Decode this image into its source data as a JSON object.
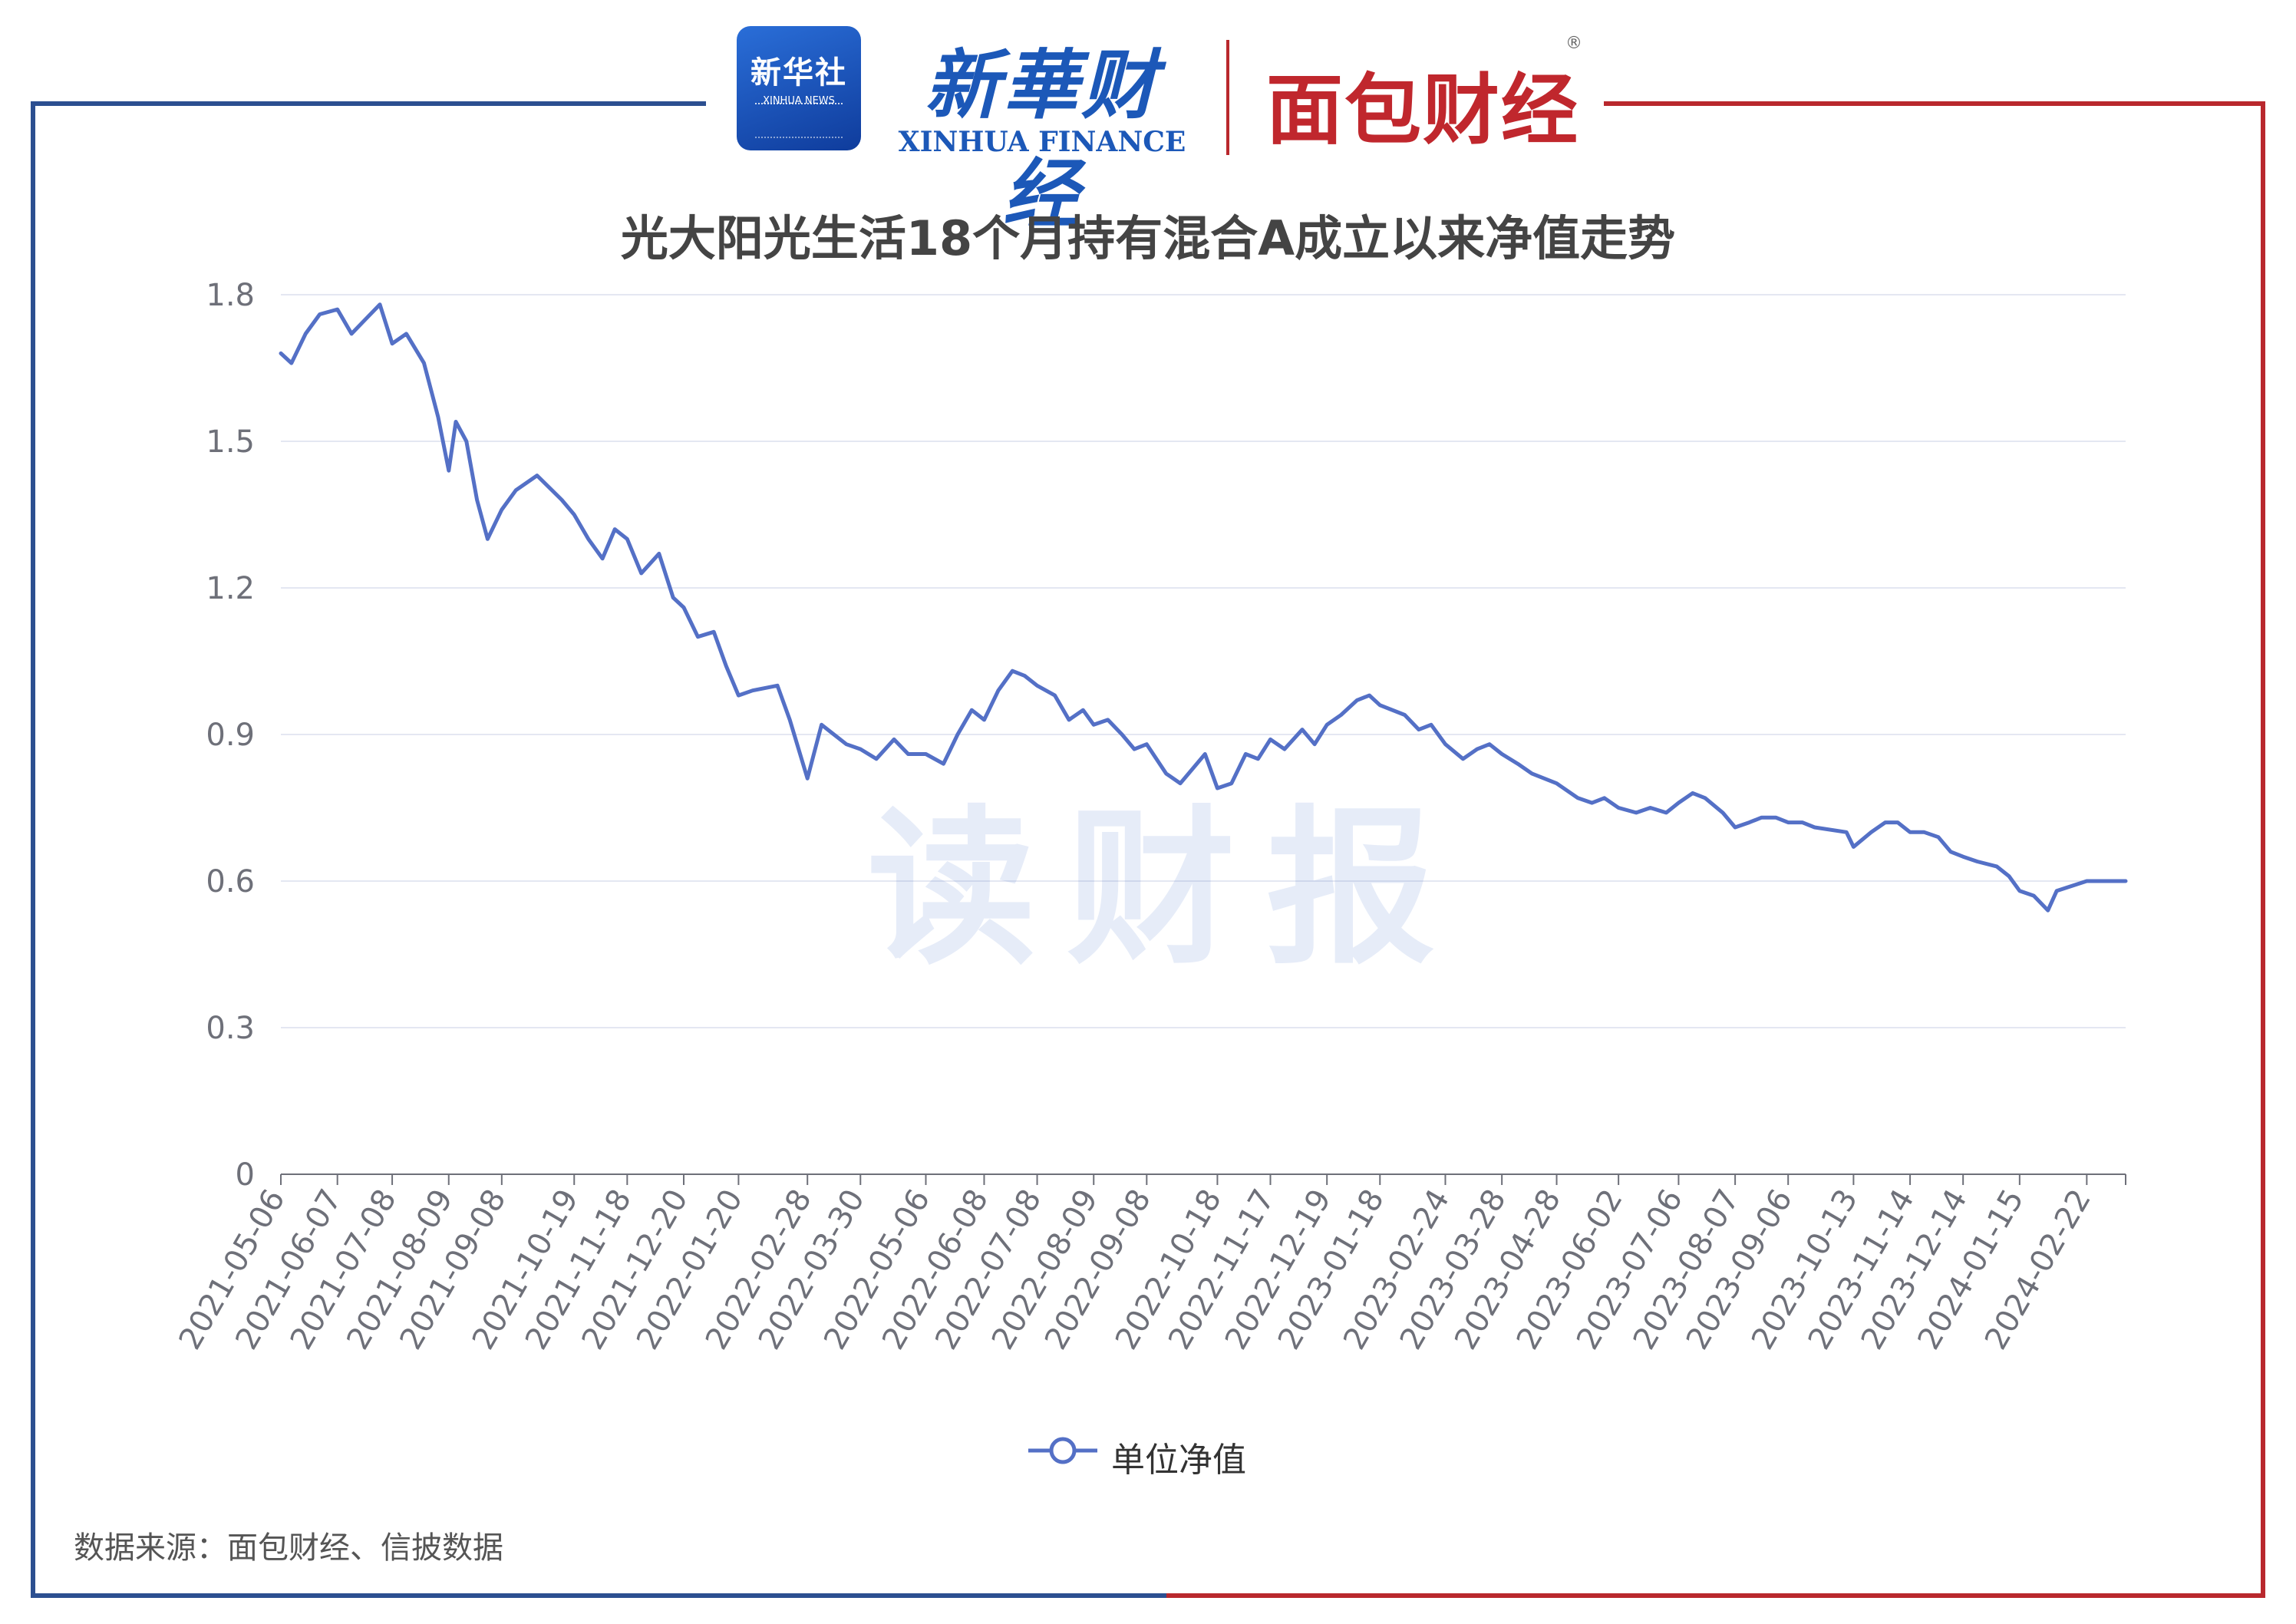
{
  "header": {
    "xinhua_news_cn": "新华社",
    "xinhua_news_en": "XINHUA NEWS",
    "xinhua_finance_cn": "新華财经",
    "xinhua_finance_en": "XINHUA FINANCE",
    "mianbao_logo": "面包财经",
    "registered_mark": "®"
  },
  "watermark": "读财报",
  "source_note": "数据来源：面包财经、信披数据",
  "colors": {
    "series": "#5470c6",
    "frame_left": "#2c4f90",
    "frame_right": "#b9282d"
  },
  "chart_data": {
    "type": "line",
    "title": "光大阳光生活18个月持有混合A成立以来净值走势",
    "xlabel": "",
    "ylabel": "",
    "ylim": [
      0,
      1.8
    ],
    "yticks": [
      "0",
      "0.3",
      "0.6",
      "0.9",
      "1.2",
      "1.5",
      "1.8"
    ],
    "grid": true,
    "legend_position": "bottom-center",
    "x_tick_labels": [
      "2021-05-06",
      "2021-06-07",
      "2021-07-08",
      "2021-08-09",
      "2021-09-08",
      "2021-10-19",
      "2021-11-18",
      "2021-12-20",
      "2022-01-20",
      "2022-02-28",
      "2022-03-30",
      "2022-05-06",
      "2022-06-08",
      "2022-07-08",
      "2022-08-09",
      "2022-09-08",
      "2022-10-18",
      "2022-11-17",
      "2022-12-19",
      "2023-01-18",
      "2023-02-24",
      "2023-03-28",
      "2023-04-28",
      "2023-06-02",
      "2023-07-06",
      "2023-08-07",
      "2023-09-06",
      "2023-10-13",
      "2023-11-14",
      "2023-12-14",
      "2024-01-15",
      "2024-02-22"
    ],
    "x": [
      "2021-05-06",
      "2021-05-12",
      "2021-05-20",
      "2021-05-28",
      "2021-06-07",
      "2021-06-15",
      "2021-06-23",
      "2021-07-01",
      "2021-07-08",
      "2021-07-16",
      "2021-07-26",
      "2021-08-03",
      "2021-08-09",
      "2021-08-13",
      "2021-08-19",
      "2021-08-25",
      "2021-08-31",
      "2021-09-08",
      "2021-09-16",
      "2021-09-28",
      "2021-10-12",
      "2021-10-19",
      "2021-10-27",
      "2021-11-04",
      "2021-11-11",
      "2021-11-18",
      "2021-11-26",
      "2021-12-06",
      "2021-12-14",
      "2021-12-20",
      "2021-12-28",
      "2022-01-06",
      "2022-01-13",
      "2022-01-20",
      "2022-01-28",
      "2022-02-11",
      "2022-02-18",
      "2022-02-28",
      "2022-03-08",
      "2022-03-15",
      "2022-03-22",
      "2022-03-30",
      "2022-04-08",
      "2022-04-18",
      "2022-04-26",
      "2022-05-06",
      "2022-05-16",
      "2022-05-24",
      "2022-06-01",
      "2022-06-08",
      "2022-06-16",
      "2022-06-24",
      "2022-07-01",
      "2022-07-08",
      "2022-07-18",
      "2022-07-26",
      "2022-08-03",
      "2022-08-09",
      "2022-08-17",
      "2022-08-25",
      "2022-09-01",
      "2022-09-08",
      "2022-09-19",
      "2022-09-27",
      "2022-10-11",
      "2022-10-18",
      "2022-10-26",
      "2022-11-03",
      "2022-11-10",
      "2022-11-17",
      "2022-11-25",
      "2022-12-05",
      "2022-12-12",
      "2022-12-19",
      "2022-12-27",
      "2023-01-05",
      "2023-01-12",
      "2023-01-18",
      "2023-02-01",
      "2023-02-09",
      "2023-02-16",
      "2023-02-24",
      "2023-03-06",
      "2023-03-14",
      "2023-03-21",
      "2023-03-28",
      "2023-04-06",
      "2023-04-14",
      "2023-04-21",
      "2023-04-28",
      "2023-05-10",
      "2023-05-18",
      "2023-05-25",
      "2023-06-02",
      "2023-06-12",
      "2023-06-20",
      "2023-06-29",
      "2023-07-06",
      "2023-07-14",
      "2023-07-21",
      "2023-07-31",
      "2023-08-07",
      "2023-08-15",
      "2023-08-22",
      "2023-08-30",
      "2023-09-06",
      "2023-09-14",
      "2023-09-21",
      "2023-10-09",
      "2023-10-13",
      "2023-10-23",
      "2023-10-31",
      "2023-11-07",
      "2023-11-14",
      "2023-11-22",
      "2023-11-30",
      "2023-12-07",
      "2023-12-14",
      "2023-12-22",
      "2024-01-02",
      "2024-01-09",
      "2024-01-15",
      "2024-01-23",
      "2024-01-31",
      "2024-02-05",
      "2024-02-22",
      "2024-03-01",
      "2024-03-08",
      "2024-03-15"
    ],
    "series": [
      {
        "name": "单位净值",
        "values": [
          1.68,
          1.66,
          1.72,
          1.76,
          1.77,
          1.72,
          1.75,
          1.78,
          1.7,
          1.72,
          1.66,
          1.55,
          1.44,
          1.54,
          1.5,
          1.38,
          1.3,
          1.36,
          1.4,
          1.43,
          1.38,
          1.35,
          1.3,
          1.26,
          1.32,
          1.3,
          1.23,
          1.27,
          1.18,
          1.16,
          1.1,
          1.11,
          1.04,
          0.98,
          0.99,
          1.0,
          0.93,
          0.81,
          0.92,
          0.9,
          0.88,
          0.87,
          0.85,
          0.89,
          0.86,
          0.86,
          0.84,
          0.9,
          0.95,
          0.93,
          0.99,
          1.03,
          1.02,
          1.0,
          0.98,
          0.93,
          0.95,
          0.92,
          0.93,
          0.9,
          0.87,
          0.88,
          0.82,
          0.8,
          0.86,
          0.79,
          0.8,
          0.86,
          0.85,
          0.89,
          0.87,
          0.91,
          0.88,
          0.92,
          0.94,
          0.97,
          0.98,
          0.96,
          0.94,
          0.91,
          0.92,
          0.88,
          0.85,
          0.87,
          0.88,
          0.86,
          0.84,
          0.82,
          0.81,
          0.8,
          0.77,
          0.76,
          0.77,
          0.75,
          0.74,
          0.75,
          0.74,
          0.76,
          0.78,
          0.77,
          0.74,
          0.71,
          0.72,
          0.73,
          0.73,
          0.72,
          0.72,
          0.71,
          0.7,
          0.67,
          0.7,
          0.72,
          0.72,
          0.7,
          0.7,
          0.69,
          0.66,
          0.65,
          0.64,
          0.63,
          0.61,
          0.58,
          0.57,
          0.54,
          0.58,
          0.6,
          0.6,
          0.6,
          0.6
        ]
      }
    ]
  }
}
